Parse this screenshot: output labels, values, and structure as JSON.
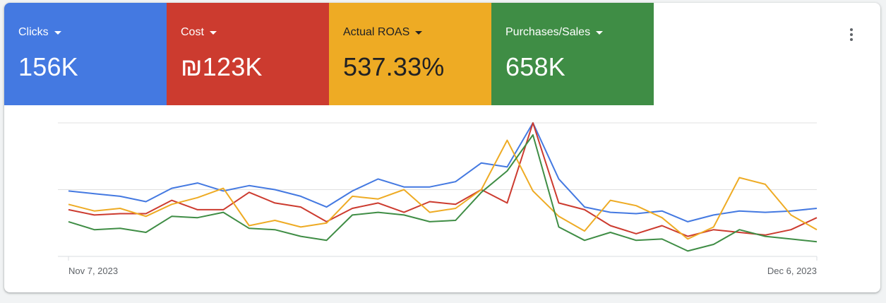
{
  "metrics": [
    {
      "label": "Clicks",
      "value": "156K",
      "color": "#4479e1"
    },
    {
      "label": "Cost",
      "value": "₪123K",
      "color": "#cc3b2f"
    },
    {
      "label": "Actual ROAS",
      "value": "537.33%",
      "color": "#eeab24"
    },
    {
      "label": "Purchases/Sales",
      "value": "658K",
      "color": "#3f8d45"
    }
  ],
  "more_menu_icon": "more-vert-icon",
  "chart_data": {
    "type": "line",
    "x_labels": [
      "Nov 7, 2023",
      "Dec 6, 2023"
    ],
    "grid": true,
    "ylim": [
      0,
      100
    ],
    "series": [
      {
        "color": "#4479e1",
        "values": [
          49,
          47,
          45,
          41,
          51,
          55,
          49,
          53,
          50,
          45,
          37,
          49,
          58,
          52,
          52,
          56,
          70,
          67,
          100,
          58,
          37,
          33,
          32,
          34,
          26,
          31,
          34,
          33,
          34,
          36
        ]
      },
      {
        "color": "#cc3b2f",
        "values": [
          35,
          31,
          32,
          32,
          42,
          35,
          35,
          48,
          40,
          37,
          26,
          36,
          40,
          33,
          41,
          39,
          50,
          40,
          100,
          40,
          35,
          23,
          17,
          23,
          15,
          20,
          18,
          16,
          20,
          29
        ]
      },
      {
        "color": "#eeab24",
        "values": [
          39,
          34,
          36,
          30,
          39,
          44,
          51,
          23,
          27,
          22,
          25,
          45,
          43,
          50,
          33,
          36,
          50,
          87,
          49,
          30,
          19,
          42,
          38,
          29,
          13,
          22,
          59,
          54,
          31,
          20
        ]
      },
      {
        "color": "#3f8d45",
        "values": [
          26,
          20,
          21,
          18,
          30,
          29,
          33,
          21,
          20,
          15,
          12,
          31,
          33,
          31,
          26,
          27,
          48,
          64,
          91,
          22,
          12,
          18,
          12,
          13,
          4,
          9,
          20,
          15,
          13,
          11
        ]
      }
    ]
  }
}
